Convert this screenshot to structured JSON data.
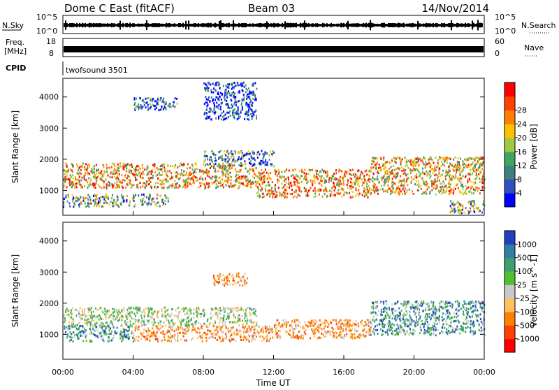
{
  "header": {
    "station": "Dome C East (fitACF)",
    "beam": "Beam 03",
    "date": "14/Nov/2014"
  },
  "top_panels": {
    "nsky_label": "N.Sky",
    "nsky_ticks": [
      "10^5",
      "10^0"
    ],
    "nsearch_label": "N.Search",
    "nsearch_ticks": [
      "10^5",
      "10^0"
    ],
    "freq_label": "Freq.",
    "freq_unit": "[MHz]",
    "freq_ticks": [
      "18",
      "8"
    ],
    "nave_label": "Nave",
    "nave_ticks": [
      "60",
      "0"
    ],
    "cpid_label": "CPID",
    "cpid_value": "twofsound 3501"
  },
  "chart_data": [
    {
      "type": "heatmap",
      "name": "power-panel",
      "xlabel": "Time UT",
      "ylabel": "Slant Range [km]",
      "xlim": [
        0,
        24
      ],
      "ylim": [
        200,
        4600
      ],
      "y_ticks": [
        1000,
        2000,
        3000,
        4000
      ],
      "colorbar": {
        "label": "Power [dB]",
        "ticks": [
          "4",
          "8",
          "12",
          "16",
          "20",
          "24",
          "28"
        ],
        "range": [
          0,
          32
        ],
        "colors": [
          "#0000ff",
          "#2f4fbf",
          "#3f7f7f",
          "#3fa65f",
          "#a0c840",
          "#ffc000",
          "#ff8000",
          "#ff4000",
          "#ff0000"
        ]
      },
      "echo_bands": [
        {
          "t0": 0.0,
          "t1": 11.0,
          "r0": 1100,
          "r1": 1900,
          "level": 0.65
        },
        {
          "t0": 11.0,
          "t1": 17.5,
          "r0": 800,
          "r1": 1700,
          "level": 0.7
        },
        {
          "t0": 17.5,
          "t1": 24.0,
          "r0": 900,
          "r1": 2100,
          "level": 0.6
        },
        {
          "t0": 0.0,
          "t1": 6.0,
          "r0": 500,
          "r1": 900,
          "level": 0.35
        },
        {
          "t0": 8.0,
          "t1": 12.0,
          "r0": 1800,
          "r1": 2300,
          "level": 0.3
        },
        {
          "t0": 4.0,
          "t1": 6.5,
          "r0": 3600,
          "r1": 4000,
          "level": 0.15
        },
        {
          "t0": 8.0,
          "t1": 11.0,
          "r0": 3300,
          "r1": 4500,
          "level": 0.1
        },
        {
          "t0": 22.0,
          "t1": 24.0,
          "r0": 300,
          "r1": 700,
          "level": 0.4
        }
      ]
    },
    {
      "type": "heatmap",
      "name": "velocity-panel",
      "xlabel": "Time UT",
      "ylabel": "Slant Range [km]",
      "xlim": [
        0,
        24
      ],
      "ylim": [
        200,
        4600
      ],
      "x_ticks": [
        "00:00",
        "04:00",
        "08:00",
        "12:00",
        "16:00",
        "20:00",
        "00:00"
      ],
      "y_ticks": [
        1000,
        2000,
        3000,
        4000
      ],
      "colorbar": {
        "label": "Velocity [m s^-1]",
        "ticks": [
          "1000",
          "500",
          "100",
          "25",
          "-25",
          "-100",
          "-500",
          "-1000"
        ],
        "colors": [
          "#2040c0",
          "#2e7fa0",
          "#3f9f6f",
          "#50c030",
          "#c8c8c8",
          "#ffc060",
          "#ff8000",
          "#ff4000",
          "#ff0000"
        ]
      },
      "echo_bands": [
        {
          "t0": 0.0,
          "t1": 11.0,
          "r0": 1300,
          "r1": 1900,
          "level": "gray"
        },
        {
          "t0": 4.0,
          "t1": 12.0,
          "r0": 800,
          "r1": 1300,
          "level": "orange"
        },
        {
          "t0": 12.0,
          "t1": 17.5,
          "r0": 900,
          "r1": 1500,
          "level": "orange"
        },
        {
          "t0": 17.5,
          "t1": 24.0,
          "r0": 1000,
          "r1": 2100,
          "level": "green"
        },
        {
          "t0": 0.0,
          "t1": 4.0,
          "r0": 800,
          "r1": 1300,
          "level": "green"
        },
        {
          "t0": 8.5,
          "t1": 10.5,
          "r0": 2600,
          "r1": 3000,
          "level": "orange"
        }
      ]
    }
  ]
}
